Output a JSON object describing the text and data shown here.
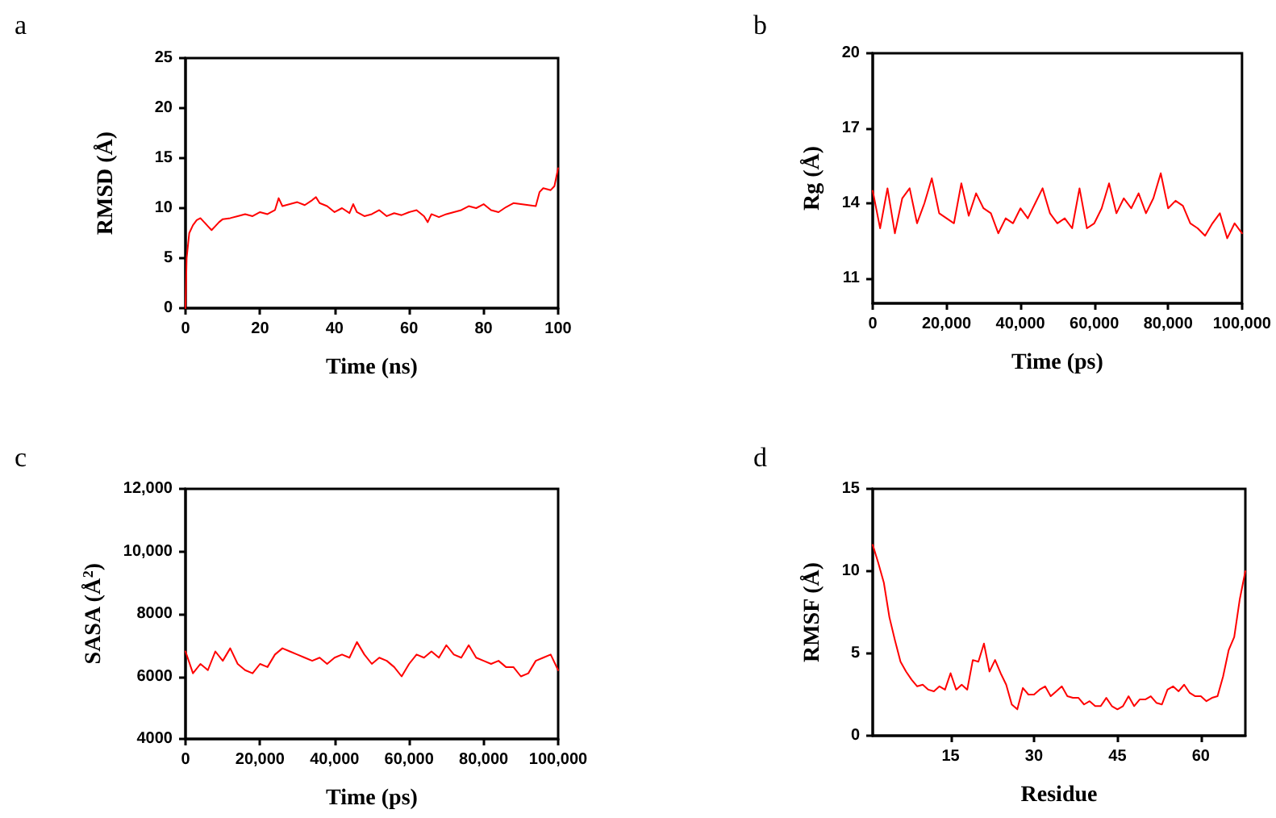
{
  "chart_data": [
    {
      "type": "line",
      "title": "a",
      "xlabel": "Time (ns)",
      "ylabel": "RMSD (Å)",
      "color": "#ff0000",
      "marker": "none",
      "line_style": "solid",
      "grid": false,
      "xlim": [
        0,
        100
      ],
      "xticks": [
        0,
        20,
        40,
        60,
        80,
        100
      ],
      "ylim": [
        0,
        25
      ],
      "yticks": [
        0,
        5,
        10,
        15,
        20,
        25
      ],
      "x": [
        0,
        0.3,
        1,
        2,
        3,
        4,
        5,
        6,
        7,
        8,
        9,
        10,
        12,
        14,
        16,
        18,
        20,
        22,
        24,
        25,
        26,
        28,
        30,
        32,
        34,
        35,
        36,
        38,
        40,
        42,
        44,
        45,
        46,
        48,
        50,
        52,
        54,
        56,
        58,
        60,
        62,
        64,
        65,
        66,
        68,
        70,
        72,
        74,
        76,
        78,
        80,
        82,
        84,
        86,
        88,
        90,
        92,
        94,
        95,
        96,
        98,
        99,
        100
      ],
      "values": [
        0,
        5,
        7.5,
        8.3,
        8.8,
        9.0,
        8.6,
        8.2,
        7.8,
        8.2,
        8.6,
        8.9,
        9.0,
        9.2,
        9.4,
        9.2,
        9.6,
        9.4,
        9.8,
        11,
        10.2,
        10.4,
        10.6,
        10.3,
        10.8,
        11.1,
        10.5,
        10.2,
        9.6,
        10.0,
        9.5,
        10.4,
        9.6,
        9.2,
        9.4,
        9.8,
        9.2,
        9.5,
        9.3,
        9.6,
        9.8,
        9.2,
        8.6,
        9.4,
        9.1,
        9.4,
        9.6,
        9.8,
        10.2,
        10.0,
        10.4,
        9.8,
        9.6,
        10.1,
        10.5,
        10.4,
        10.3,
        10.2,
        11.6,
        12.0,
        11.8,
        12.2,
        14.0
      ]
    },
    {
      "type": "line",
      "title": "b",
      "xlabel": "Time (ps)",
      "ylabel": "Rg (Å)",
      "color": "#ff0000",
      "marker": "none",
      "line_style": "solid",
      "grid": false,
      "xlim": [
        0,
        100000
      ],
      "xticks": [
        0,
        {
          "value": 20000,
          "label": "20,000"
        },
        {
          "value": 40000,
          "label": "40,000"
        },
        {
          "value": 60000,
          "label": "60,000"
        },
        {
          "value": 80000,
          "label": "80,000"
        },
        {
          "value": 100000,
          "label": "100,000"
        }
      ],
      "ylim": [
        10,
        20
      ],
      "yticks": [
        11,
        14,
        17,
        20
      ],
      "x": [
        0,
        2000,
        4000,
        6000,
        8000,
        10000,
        12000,
        14000,
        16000,
        18000,
        20000,
        22000,
        24000,
        26000,
        28000,
        30000,
        32000,
        34000,
        36000,
        38000,
        40000,
        42000,
        44000,
        46000,
        48000,
        50000,
        52000,
        54000,
        56000,
        58000,
        60000,
        62000,
        64000,
        66000,
        68000,
        70000,
        72000,
        74000,
        76000,
        78000,
        80000,
        82000,
        84000,
        86000,
        88000,
        90000,
        92000,
        94000,
        96000,
        98000,
        100000
      ],
      "values": [
        14.5,
        13.0,
        14.6,
        12.8,
        14.2,
        14.6,
        13.2,
        14.0,
        15.0,
        13.6,
        13.4,
        13.2,
        14.8,
        13.5,
        14.4,
        13.8,
        13.6,
        12.8,
        13.4,
        13.2,
        13.8,
        13.4,
        14.0,
        14.6,
        13.6,
        13.2,
        13.4,
        13.0,
        14.6,
        13.0,
        13.2,
        13.8,
        14.8,
        13.6,
        14.2,
        13.8,
        14.4,
        13.6,
        14.2,
        15.2,
        13.8,
        14.1,
        13.9,
        13.2,
        13.0,
        12.7,
        13.2,
        13.6,
        12.6,
        13.2,
        12.8
      ]
    },
    {
      "type": "line",
      "title": "c",
      "xlabel": "Time (ps)",
      "ylabel": "SASA (Å$^{2}$)",
      "color": "#ff0000",
      "marker": "none",
      "line_style": "solid",
      "grid": false,
      "xlim": [
        0,
        100000
      ],
      "xticks": [
        0,
        {
          "value": 20000,
          "label": "20,000"
        },
        {
          "value": 40000,
          "label": "40,000"
        },
        {
          "value": 60000,
          "label": "60,000"
        },
        {
          "value": 80000,
          "label": "80,000"
        },
        {
          "value": 100000,
          "label": "100,000"
        }
      ],
      "ylim": [
        4000,
        12000
      ],
      "yticks": [
        4000,
        6000,
        8000,
        {
          "value": 10000,
          "label": "10,000"
        },
        {
          "value": 12000,
          "label": "12,000"
        }
      ],
      "x": [
        0,
        2000,
        4000,
        6000,
        8000,
        10000,
        12000,
        14000,
        16000,
        18000,
        20000,
        22000,
        24000,
        26000,
        28000,
        30000,
        32000,
        34000,
        36000,
        38000,
        40000,
        42000,
        44000,
        46000,
        48000,
        50000,
        52000,
        54000,
        56000,
        58000,
        60000,
        62000,
        64000,
        66000,
        68000,
        70000,
        72000,
        74000,
        76000,
        78000,
        80000,
        82000,
        84000,
        86000,
        88000,
        90000,
        92000,
        94000,
        96000,
        98000,
        100000
      ],
      "values": [
        6800,
        6100,
        6400,
        6200,
        6800,
        6500,
        6900,
        6400,
        6200,
        6100,
        6400,
        6300,
        6700,
        6900,
        6800,
        6700,
        6600,
        6500,
        6600,
        6400,
        6600,
        6700,
        6600,
        7100,
        6700,
        6400,
        6600,
        6500,
        6300,
        6000,
        6400,
        6700,
        6600,
        6800,
        6600,
        7000,
        6700,
        6600,
        7000,
        6600,
        6500,
        6400,
        6500,
        6300,
        6300,
        6000,
        6100,
        6500,
        6600,
        6700,
        6200
      ]
    },
    {
      "type": "line",
      "title": "d",
      "xlabel": "Residue",
      "ylabel": "RMSF (Å)",
      "color": "#ff0000",
      "marker": "none",
      "line_style": "solid",
      "grid": false,
      "xlim": [
        1,
        68
      ],
      "xticks": [
        15,
        30,
        45,
        60
      ],
      "ylim": [
        0,
        15
      ],
      "yticks": [
        0,
        5,
        10,
        15
      ],
      "x": [
        1,
        2,
        3,
        4,
        5,
        6,
        7,
        8,
        9,
        10,
        11,
        12,
        13,
        14,
        15,
        16,
        17,
        18,
        19,
        20,
        21,
        22,
        23,
        24,
        25,
        26,
        27,
        28,
        29,
        30,
        31,
        32,
        33,
        34,
        35,
        36,
        37,
        38,
        39,
        40,
        41,
        42,
        43,
        44,
        45,
        46,
        47,
        48,
        49,
        50,
        51,
        52,
        53,
        54,
        55,
        56,
        57,
        58,
        59,
        60,
        61,
        62,
        63,
        64,
        65,
        66,
        67,
        68
      ],
      "values": [
        11.6,
        10.5,
        9.3,
        7.2,
        5.8,
        4.5,
        3.9,
        3.4,
        3.0,
        3.1,
        2.8,
        2.7,
        3.0,
        2.8,
        3.8,
        2.8,
        3.1,
        2.8,
        4.6,
        4.5,
        5.6,
        3.9,
        4.6,
        3.8,
        3.1,
        1.9,
        1.6,
        2.9,
        2.5,
        2.5,
        2.8,
        3.0,
        2.4,
        2.7,
        3.0,
        2.4,
        2.3,
        2.3,
        1.9,
        2.1,
        1.8,
        1.8,
        2.3,
        1.8,
        1.6,
        1.8,
        2.4,
        1.8,
        2.2,
        2.2,
        2.4,
        2.0,
        1.9,
        2.8,
        3.0,
        2.7,
        3.1,
        2.6,
        2.4,
        2.4,
        2.1,
        2.3,
        2.4,
        3.6,
        5.2,
        6.0,
        8.3,
        10.0
      ]
    }
  ]
}
